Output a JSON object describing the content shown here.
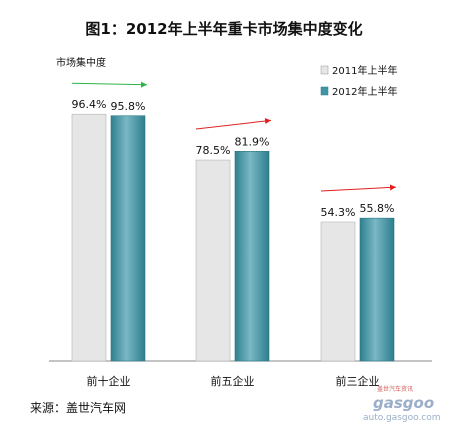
{
  "chart_data": {
    "type": "bar",
    "title": "图1：2012年上半年重卡市场集中度变化",
    "ylabel": "市场集中度",
    "categories": [
      "前十企业",
      "前五企业",
      "前三企业"
    ],
    "series": [
      {
        "name": "2011年上半年",
        "values": [
          96.4,
          78.5,
          54.3
        ],
        "labels": [
          "96.4%",
          "78.5%",
          "54.3%"
        ],
        "color": "#e6e6e6"
      },
      {
        "name": "2012年上半年",
        "values": [
          95.8,
          81.9,
          55.8
        ],
        "labels": [
          "95.8%",
          "81.9%",
          "55.8%"
        ],
        "color": "#3f95a6"
      }
    ],
    "ylim": [
      0,
      115
    ],
    "grid": false,
    "legend": "top-right",
    "source": "来源：盖世汽车网",
    "watermark": {
      "brand": "盖世汽车资讯",
      "logo": "gasgoo",
      "url": "auto.gasgoo.com"
    },
    "trend_arrow_colors": [
      "#2db34a",
      "#e02020",
      "#e02020"
    ]
  }
}
